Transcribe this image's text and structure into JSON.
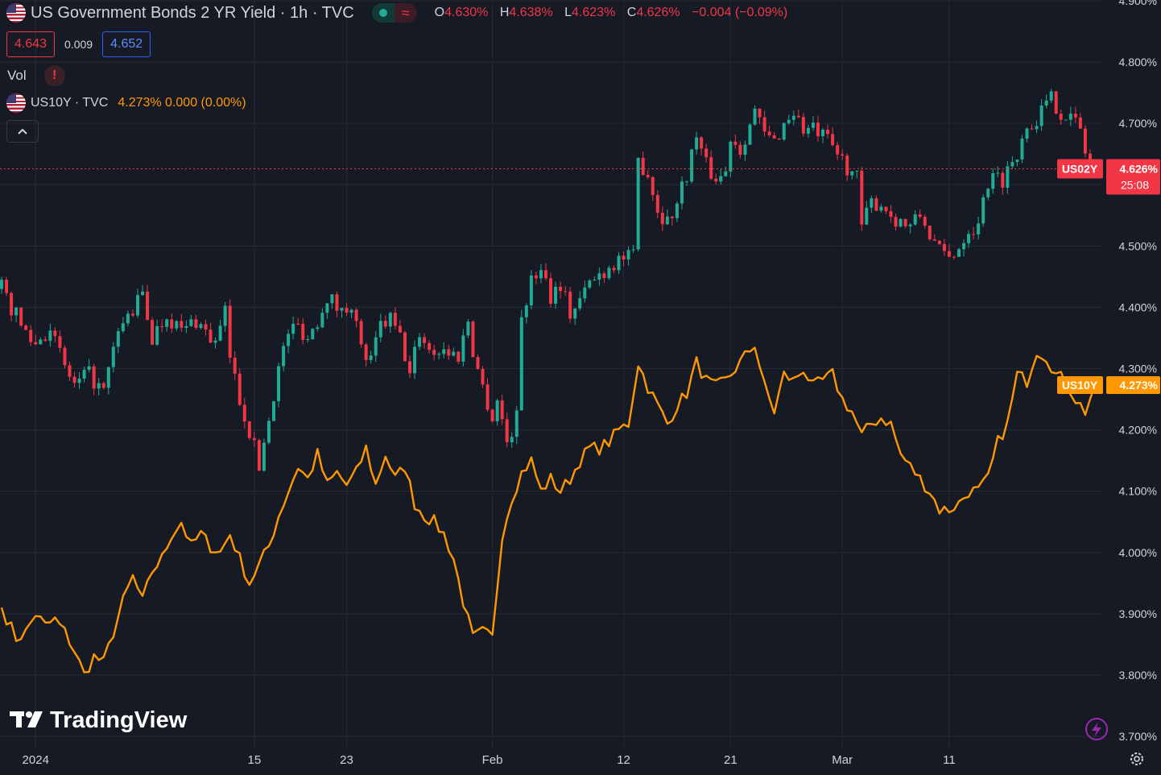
{
  "header": {
    "title": "US Government Bonds 2 YR Yield · 1h · TVC",
    "ohlc": [
      {
        "key": "O",
        "value": "4.630%"
      },
      {
        "key": "H",
        "value": "4.638%"
      },
      {
        "key": "L",
        "value": "4.623%"
      },
      {
        "key": "C",
        "value": "4.626%"
      }
    ],
    "change": "−0.004 (−0.09%)"
  },
  "trade": {
    "sell": "4.643",
    "spread": "0.009",
    "buy": "4.652"
  },
  "volume": {
    "label": "Vol",
    "warning": "!"
  },
  "compare": {
    "symbol": "US10Y · TVC",
    "value": "4.273% 0.000 (0.00%)"
  },
  "watermark": "TradingView",
  "colors": {
    "background": "#161a25",
    "grid": "#262a35",
    "up": "#22ab94",
    "down": "#f23645",
    "compare": "#ff9800",
    "axis_text": "#d1d4dc"
  },
  "icons": [
    "us-flag-icon",
    "market-open-icon",
    "delay-icon",
    "warning-icon",
    "chevron-up-icon",
    "tradingview-logo-icon",
    "lightning-icon",
    "settings-gear-icon"
  ],
  "chart_data": {
    "type": "line",
    "y_axis": {
      "ticks": [
        "4.900%",
        "4.800%",
        "4.700%",
        "4.600%",
        "4.500%",
        "4.400%",
        "4.300%",
        "4.200%",
        "4.100%",
        "4.000%",
        "3.900%",
        "3.800%",
        "3.700%"
      ],
      "ylim": [
        3.69,
        4.91
      ]
    },
    "x_axis": {
      "ticks": [
        {
          "label": "2024",
          "idx": 7
        },
        {
          "label": "15",
          "idx": 52
        },
        {
          "label": "23",
          "idx": 71
        },
        {
          "label": "Feb",
          "idx": 101
        },
        {
          "label": "12",
          "idx": 128
        },
        {
          "label": "21",
          "idx": 150
        },
        {
          "label": "Mar",
          "idx": 173
        },
        {
          "label": "11",
          "idx": 195
        }
      ],
      "count": 226
    },
    "series": [
      {
        "name": "US02Y",
        "style": "candles",
        "last_label": "4.626%",
        "countdown": "25:08",
        "anchors": [
          [
            0,
            4.43
          ],
          [
            4,
            4.37
          ],
          [
            7,
            4.34
          ],
          [
            10,
            4.37
          ],
          [
            12,
            4.32
          ],
          [
            15,
            4.27
          ],
          [
            18,
            4.29
          ],
          [
            21,
            4.26
          ],
          [
            24,
            4.36
          ],
          [
            29,
            4.42
          ],
          [
            31,
            4.35
          ],
          [
            34,
            4.39
          ],
          [
            37,
            4.36
          ],
          [
            40,
            4.38
          ],
          [
            44,
            4.34
          ],
          [
            46,
            4.39
          ],
          [
            47,
            4.32
          ],
          [
            49,
            4.25
          ],
          [
            51,
            4.2
          ],
          [
            53,
            4.14
          ],
          [
            55,
            4.22
          ],
          [
            57,
            4.3
          ],
          [
            59,
            4.36
          ],
          [
            61,
            4.37
          ],
          [
            63,
            4.35
          ],
          [
            65,
            4.38
          ],
          [
            67,
            4.42
          ],
          [
            70,
            4.39
          ],
          [
            72,
            4.41
          ],
          [
            74,
            4.33
          ],
          [
            76,
            4.31
          ],
          [
            78,
            4.37
          ],
          [
            80,
            4.38
          ],
          [
            82,
            4.35
          ],
          [
            84,
            4.29
          ],
          [
            86,
            4.36
          ],
          [
            88,
            4.33
          ],
          [
            91,
            4.33
          ],
          [
            94,
            4.32
          ],
          [
            96,
            4.38
          ],
          [
            97,
            4.33
          ],
          [
            99,
            4.27
          ],
          [
            101,
            4.22
          ],
          [
            102,
            4.25
          ],
          [
            104,
            4.18
          ],
          [
            106,
            4.22
          ],
          [
            107,
            4.39
          ],
          [
            109,
            4.44
          ],
          [
            111,
            4.47
          ],
          [
            113,
            4.42
          ],
          [
            115,
            4.44
          ],
          [
            117,
            4.39
          ],
          [
            119,
            4.41
          ],
          [
            121,
            4.44
          ],
          [
            124,
            4.46
          ],
          [
            127,
            4.48
          ],
          [
            130,
            4.48
          ],
          [
            131,
            4.64
          ],
          [
            133,
            4.62
          ],
          [
            135,
            4.56
          ],
          [
            137,
            4.54
          ],
          [
            139,
            4.57
          ],
          [
            141,
            4.62
          ],
          [
            143,
            4.68
          ],
          [
            145,
            4.63
          ],
          [
            147,
            4.61
          ],
          [
            149,
            4.62
          ],
          [
            150,
            4.68
          ],
          [
            152,
            4.66
          ],
          [
            155,
            4.72
          ],
          [
            157,
            4.68
          ],
          [
            159,
            4.67
          ],
          [
            161,
            4.7
          ],
          [
            163,
            4.72
          ],
          [
            165,
            4.69
          ],
          [
            167,
            4.69
          ],
          [
            170,
            4.67
          ],
          [
            172,
            4.65
          ],
          [
            174,
            4.63
          ],
          [
            176,
            4.61
          ],
          [
            177,
            4.53
          ],
          [
            179,
            4.57
          ],
          [
            181,
            4.57
          ],
          [
            183,
            4.55
          ],
          [
            185,
            4.54
          ],
          [
            187,
            4.53
          ],
          [
            189,
            4.55
          ],
          [
            191,
            4.52
          ],
          [
            193,
            4.49
          ],
          [
            195,
            4.48
          ],
          [
            197,
            4.5
          ],
          [
            199,
            4.53
          ],
          [
            201,
            4.53
          ],
          [
            202,
            4.59
          ],
          [
            204,
            4.61
          ],
          [
            206,
            4.61
          ],
          [
            208,
            4.64
          ],
          [
            209,
            4.64
          ],
          [
            210,
            4.69
          ],
          [
            212,
            4.7
          ],
          [
            214,
            4.72
          ],
          [
            216,
            4.74
          ],
          [
            218,
            4.72
          ],
          [
            220,
            4.71
          ],
          [
            222,
            4.69
          ],
          [
            224,
            4.62
          ],
          [
            225,
            4.626
          ]
        ]
      },
      {
        "name": "US10Y",
        "style": "line",
        "last_label": "4.273%",
        "anchors": [
          [
            0,
            3.91
          ],
          [
            3,
            3.86
          ],
          [
            5,
            3.87
          ],
          [
            7,
            3.9
          ],
          [
            9,
            3.88
          ],
          [
            11,
            3.89
          ],
          [
            13,
            3.87
          ],
          [
            15,
            3.84
          ],
          [
            17,
            3.8
          ],
          [
            19,
            3.83
          ],
          [
            21,
            3.82
          ],
          [
            23,
            3.87
          ],
          [
            25,
            3.92
          ],
          [
            27,
            3.96
          ],
          [
            29,
            3.92
          ],
          [
            31,
            3.97
          ],
          [
            33,
            3.99
          ],
          [
            35,
            4.03
          ],
          [
            37,
            4.05
          ],
          [
            39,
            4.01
          ],
          [
            41,
            4.03
          ],
          [
            43,
            4.01
          ],
          [
            45,
            4.0
          ],
          [
            47,
            4.03
          ],
          [
            49,
            3.99
          ],
          [
            51,
            3.95
          ],
          [
            53,
            3.98
          ],
          [
            55,
            4.01
          ],
          [
            57,
            4.06
          ],
          [
            59,
            4.1
          ],
          [
            61,
            4.14
          ],
          [
            63,
            4.12
          ],
          [
            65,
            4.16
          ],
          [
            67,
            4.11
          ],
          [
            69,
            4.13
          ],
          [
            71,
            4.11
          ],
          [
            73,
            4.13
          ],
          [
            75,
            4.17
          ],
          [
            77,
            4.11
          ],
          [
            79,
            4.16
          ],
          [
            81,
            4.12
          ],
          [
            83,
            4.14
          ],
          [
            85,
            4.08
          ],
          [
            87,
            4.06
          ],
          [
            89,
            4.05
          ],
          [
            91,
            4.03
          ],
          [
            93,
            3.99
          ],
          [
            95,
            3.92
          ],
          [
            97,
            3.86
          ],
          [
            99,
            3.87
          ],
          [
            101,
            3.86
          ],
          [
            103,
            4.03
          ],
          [
            105,
            4.09
          ],
          [
            107,
            4.13
          ],
          [
            109,
            4.15
          ],
          [
            111,
            4.1
          ],
          [
            113,
            4.12
          ],
          [
            115,
            4.1
          ],
          [
            117,
            4.12
          ],
          [
            119,
            4.15
          ],
          [
            121,
            4.17
          ],
          [
            123,
            4.17
          ],
          [
            125,
            4.18
          ],
          [
            127,
            4.2
          ],
          [
            129,
            4.21
          ],
          [
            131,
            4.31
          ],
          [
            133,
            4.27
          ],
          [
            135,
            4.24
          ],
          [
            137,
            4.21
          ],
          [
            139,
            4.24
          ],
          [
            141,
            4.26
          ],
          [
            143,
            4.31
          ],
          [
            145,
            4.28
          ],
          [
            147,
            4.27
          ],
          [
            149,
            4.28
          ],
          [
            151,
            4.3
          ],
          [
            153,
            4.32
          ],
          [
            155,
            4.34
          ],
          [
            157,
            4.27
          ],
          [
            159,
            4.23
          ],
          [
            161,
            4.29
          ],
          [
            163,
            4.28
          ],
          [
            165,
            4.3
          ],
          [
            167,
            4.27
          ],
          [
            169,
            4.28
          ],
          [
            171,
            4.29
          ],
          [
            173,
            4.25
          ],
          [
            175,
            4.23
          ],
          [
            177,
            4.19
          ],
          [
            179,
            4.21
          ],
          [
            181,
            4.22
          ],
          [
            183,
            4.21
          ],
          [
            185,
            4.16
          ],
          [
            187,
            4.14
          ],
          [
            189,
            4.12
          ],
          [
            191,
            4.1
          ],
          [
            193,
            4.07
          ],
          [
            195,
            4.07
          ],
          [
            197,
            4.08
          ],
          [
            199,
            4.1
          ],
          [
            201,
            4.1
          ],
          [
            203,
            4.12
          ],
          [
            205,
            4.18
          ],
          [
            207,
            4.21
          ],
          [
            209,
            4.29
          ],
          [
            211,
            4.28
          ],
          [
            213,
            4.33
          ],
          [
            215,
            4.32
          ],
          [
            217,
            4.29
          ],
          [
            219,
            4.28
          ],
          [
            221,
            4.25
          ],
          [
            223,
            4.23
          ],
          [
            225,
            4.273
          ]
        ]
      }
    ]
  }
}
